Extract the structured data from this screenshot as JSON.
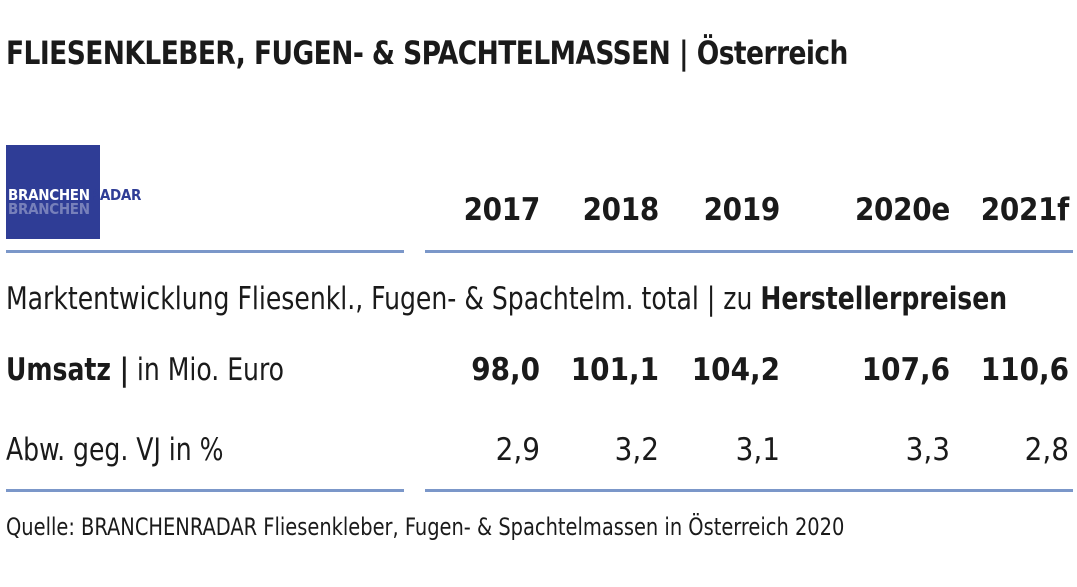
{
  "header": {
    "title": "FLIESENKLEBER, FUGEN- & SPACHTELMASSEN | Österreich"
  },
  "logo": {
    "part1": "BRANCHEN",
    "part2": "RADAR",
    "colors": {
      "box": "#2f3d96",
      "text": "#ffffff"
    }
  },
  "table": {
    "years": [
      "2017",
      "2018",
      "2019",
      "2020e",
      "2021f"
    ],
    "section_label": {
      "prefix": "Marktentwicklung Fliesenkl., Fugen- & Spachtelm. total | zu ",
      "bold": "Herstellerpreisen"
    },
    "rows": [
      {
        "label_bold": "Umsatz |",
        "label_rest": " in Mio. Euro",
        "values": [
          "98,0",
          "101,1",
          "104,2",
          "107,6",
          "110,6"
        ]
      },
      {
        "label": "Abw. geg. VJ in %",
        "values": [
          "2,9",
          "3,2",
          "3,1",
          "3,3",
          "2,8"
        ]
      }
    ],
    "rule_color": "#7b97c9"
  },
  "footer": {
    "source": "Quelle: BRANCHENRADAR Fliesenkleber, Fugen- & Spachtelmassen in Österreich 2020"
  }
}
